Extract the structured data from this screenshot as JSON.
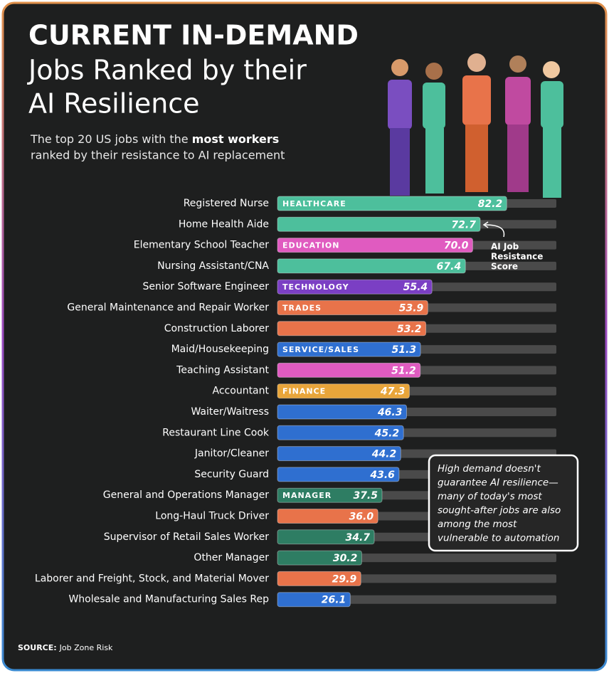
{
  "header": {
    "title_line1": "CURRENT IN-DEMAND",
    "title_line2": "Jobs Ranked by their",
    "title_line3": "AI Resilience",
    "subtitle_line1_start": "The top 20 US jobs with the ",
    "subtitle_line1_bold": "most workers",
    "subtitle_line2": "ranked by their resistance to AI replacement"
  },
  "chart_data": {
    "type": "hbar",
    "categories": [
      "Registered Nurse",
      "Home Health Aide",
      "Elementary School Teacher",
      "Nursing Assistant/CNA",
      "Senior Software Engineer",
      "General Maintenance and Repair Worker",
      "Construction Laborer",
      "Maid/Housekeeping",
      "Teaching Assistant",
      "Accountant",
      "Waiter/Waitress",
      "Restaurant Line Cook",
      "Janitor/Cleaner",
      "Security Guard",
      "General and Operations Manager",
      "Long-Haul Truck Driver",
      "Supervisor of Retail Sales Worker",
      "Other Manager",
      "Laborer and Freight, Stock, and Material Mover",
      "Wholesale and Manufacturing Sales Rep"
    ],
    "values": [
      82.2,
      72.7,
      70,
      67.4,
      55.4,
      53.9,
      53.2,
      51.3,
      51.2,
      47.3,
      46.3,
      45.2,
      44.2,
      43.6,
      37.5,
      36,
      34.7,
      30.2,
      29.9,
      26.1
    ],
    "value_labels": [
      "82.2",
      "72.7",
      "70.0",
      "67.4",
      "55.4",
      "53.9",
      "53.2",
      "51.3",
      "51.2",
      "47.3",
      "46.3",
      "45.2",
      "44.2",
      "43.6",
      "37.5",
      "36.0",
      "34.7",
      "30.2",
      "29.9",
      "26.1"
    ],
    "colors": [
      "#4dbf9c",
      "#4dbf9c",
      "#e05bc0",
      "#4dbf9c",
      "#7b3fc4",
      "#e8734a",
      "#e8734a",
      "#2f6fd0",
      "#e05bc0",
      "#e8a53a",
      "#2f6fd0",
      "#2f6fd0",
      "#2f6fd0",
      "#2f6fd0",
      "#2e7d63",
      "#e8734a",
      "#2e7d63",
      "#2e7d63",
      "#e8734a",
      "#2f6fd0"
    ],
    "bar_labels": [
      "HEALTHCARE",
      null,
      "EDUCATION",
      null,
      "TECHNOLOGY",
      "TRADES",
      null,
      "SERVICE/SALES",
      null,
      "FINANCE",
      null,
      null,
      null,
      null,
      "MANAGER",
      null,
      null,
      null,
      null,
      null
    ],
    "xlim": [
      0,
      100
    ],
    "annotation": [
      "AI Job",
      "Resistance",
      "Score"
    ],
    "callout": [
      "High demand doesn't",
      "guarantee AI resilience—",
      "many of today's most",
      "sought-after jobs are also",
      "among the most",
      "vulnerable to automation"
    ]
  },
  "footer": {
    "source_label": "SOURCE:",
    "source": "Job Zone Risk"
  }
}
